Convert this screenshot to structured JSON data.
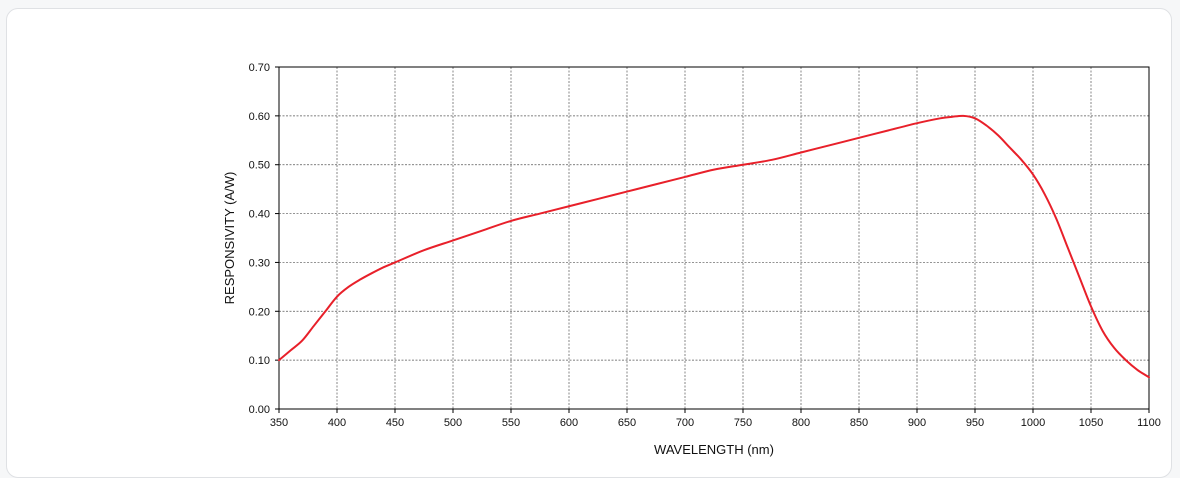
{
  "chart_data": {
    "type": "line",
    "title": "",
    "xlabel": "WAVELENGTH (nm)",
    "ylabel": "RESPONSIVITY (A/W)",
    "xlim": [
      350,
      1100
    ],
    "ylim": [
      0,
      0.7
    ],
    "x_ticks": [
      "350",
      "400",
      "450",
      "500",
      "550",
      "600",
      "650",
      "700",
      "750",
      "800",
      "850",
      "900",
      "950",
      "1000",
      "1050",
      "1100"
    ],
    "y_ticks": [
      "0.00",
      "0.10",
      "0.20",
      "0.30",
      "0.40",
      "0.50",
      "0.60",
      "0.70"
    ],
    "grid": true,
    "legend": "none",
    "series": [
      {
        "color": "#e8202a",
        "x": [
          350,
          360,
          370,
          380,
          390,
          400,
          410,
          420,
          430,
          440,
          450,
          475,
          500,
          525,
          550,
          575,
          600,
          625,
          650,
          675,
          700,
          725,
          750,
          775,
          800,
          825,
          850,
          875,
          900,
          920,
          930,
          940,
          950,
          960,
          970,
          980,
          990,
          1000,
          1010,
          1020,
          1030,
          1040,
          1050,
          1060,
          1070,
          1080,
          1090,
          1100
        ],
        "y": [
          0.1,
          0.12,
          0.14,
          0.17,
          0.2,
          0.23,
          0.25,
          0.265,
          0.278,
          0.29,
          0.3,
          0.325,
          0.345,
          0.365,
          0.385,
          0.4,
          0.415,
          0.43,
          0.445,
          0.46,
          0.475,
          0.49,
          0.5,
          0.51,
          0.525,
          0.54,
          0.555,
          0.57,
          0.585,
          0.595,
          0.598,
          0.6,
          0.595,
          0.58,
          0.56,
          0.535,
          0.51,
          0.48,
          0.44,
          0.39,
          0.33,
          0.27,
          0.21,
          0.16,
          0.125,
          0.1,
          0.08,
          0.065
        ]
      }
    ]
  }
}
